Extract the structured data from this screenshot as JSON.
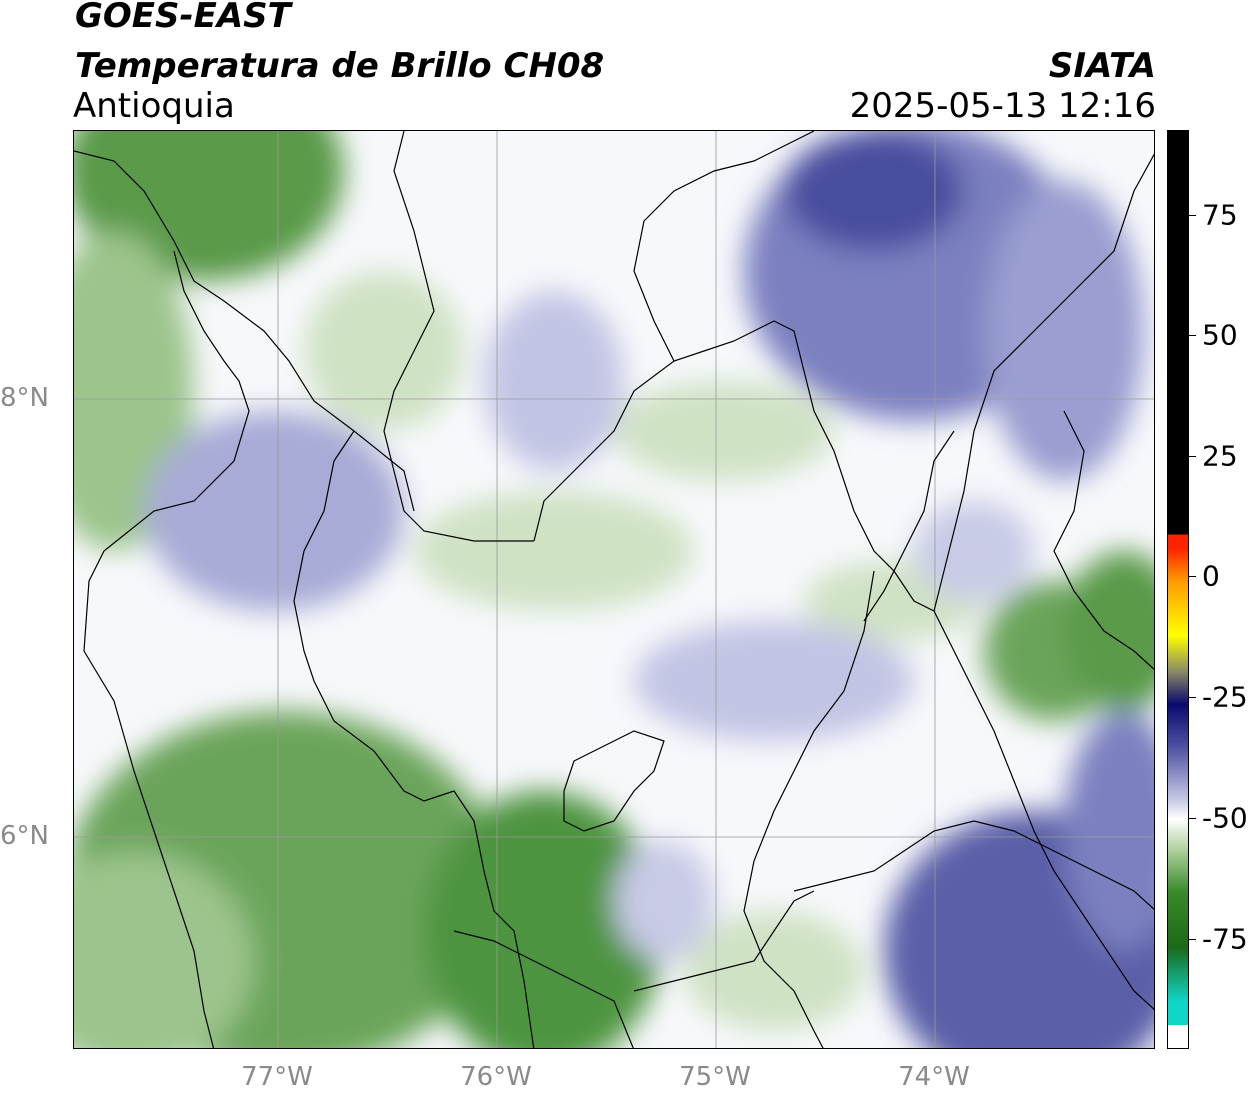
{
  "header": {
    "satellite": "GOES-EAST",
    "product": "Temperatura de Brillo CH08",
    "region": "Antioquia",
    "organization": "SIATA",
    "timestamp": "2025-05-13 12:16"
  },
  "map": {
    "x_ticks": [
      "77°W",
      "76°W",
      "75°W",
      "74°W"
    ],
    "y_ticks": [
      "8°N",
      "6°N"
    ]
  },
  "colorbar": {
    "ticks": [
      "75",
      "50",
      "25",
      "0",
      "-25",
      "-50",
      "-75"
    ],
    "colors": {
      "black": "#000000",
      "red": "#ff2200",
      "orange": "#ff9900",
      "yellow": "#ffff00",
      "navy": "#0a0a6e",
      "slate": "#4a4e9e",
      "lavender": "#c8cae6",
      "white": "#ffffff",
      "light_green": "#b8d6a8",
      "green": "#3a8a2a",
      "teal": "#10d6c8"
    }
  }
}
